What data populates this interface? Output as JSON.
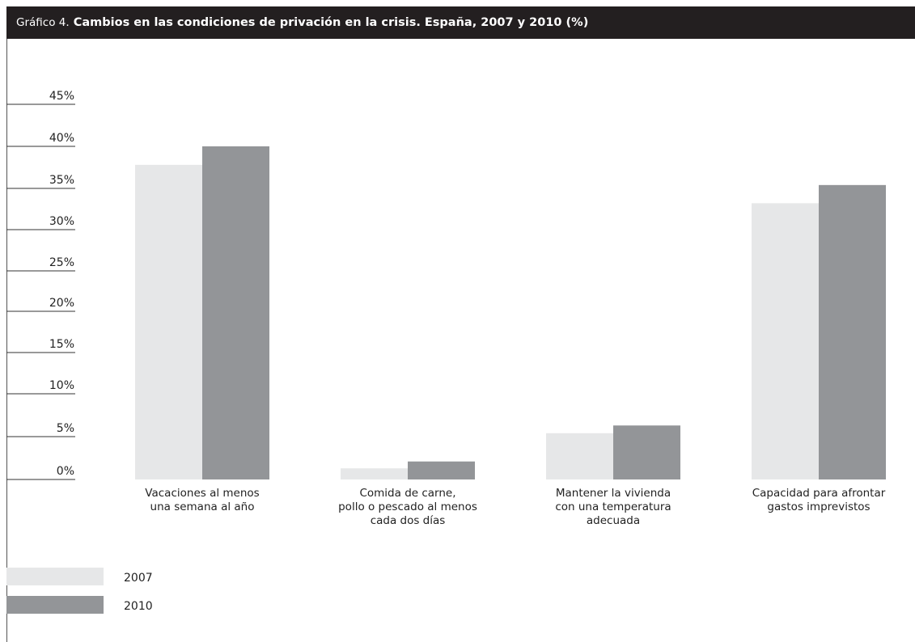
{
  "header": {
    "prefix": "Gráfico 4.",
    "title": "Cambios en las condiciones de privación en la crisis. España, 2007 y 2010 (%)"
  },
  "colors": {
    "series_2007": "#e6e7e8",
    "series_2010": "#939598",
    "header_bg": "#231f20"
  },
  "chart_data": {
    "type": "bar",
    "title": "Cambios en las condiciones de privación en la crisis. España, 2007 y 2010 (%)",
    "categories": [
      [
        "Vacaciones al menos",
        "una semana al año"
      ],
      [
        "Comida de carne,",
        "pollo o pescado al menos",
        "cada dos días"
      ],
      [
        "Mantener la vivienda",
        "con una temperatura",
        "adecuada"
      ],
      [
        "Capacidad para afrontar",
        "gastos imprevistos"
      ]
    ],
    "series": [
      {
        "name": "2007",
        "values": [
          37.8,
          1.3,
          5.4,
          33.2
        ]
      },
      {
        "name": "2010",
        "values": [
          40.0,
          2.1,
          6.3,
          35.4
        ]
      }
    ],
    "yticks": [
      "0%",
      "5%",
      "10%",
      "15%",
      "20%",
      "25%",
      "30%",
      "35%",
      "40%",
      "45%"
    ],
    "ylim": [
      0,
      45
    ],
    "xlabel": "",
    "ylabel": "",
    "legend": "bottom-left",
    "grid": false
  }
}
